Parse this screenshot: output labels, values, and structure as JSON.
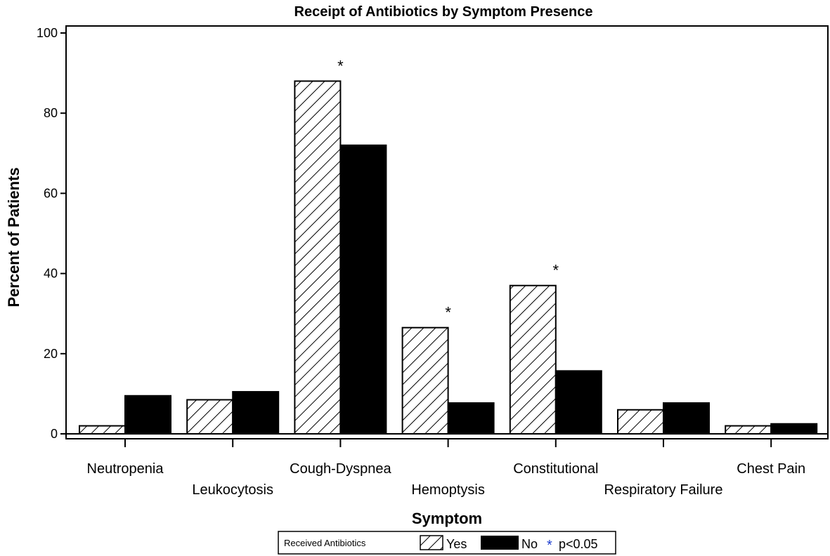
{
  "chart_data": {
    "type": "bar",
    "title": "Receipt of Antibiotics by Symptom Presence",
    "xlabel": "Symptom",
    "ylabel": "Percent of Patients",
    "ylim": [
      0,
      100
    ],
    "yticks": [
      "0",
      "20",
      "40",
      "60",
      "80",
      "100"
    ],
    "ytick_values": [
      0,
      20,
      40,
      60,
      80,
      100
    ],
    "categories": [
      "Neutropenia",
      "Leukocytosis",
      "Cough-Dyspnea",
      "Hemoptysis",
      "Constitutional",
      "Respiratory Failure",
      "Chest Pain"
    ],
    "series": [
      {
        "name": "Yes",
        "pattern": "diagonal-hatch",
        "values": [
          2,
          8.5,
          88,
          26.5,
          37,
          6,
          2
        ]
      },
      {
        "name": "No",
        "color": "#000000",
        "values": [
          9.5,
          10.5,
          72,
          7.7,
          15.7,
          7.7,
          2.5
        ]
      }
    ],
    "significance_marker": "*",
    "significant_categories": [
      "Cough-Dyspnea",
      "Hemoptysis",
      "Constitutional"
    ],
    "legend": {
      "title": "Received Antibiotics",
      "placement": "bottom-center",
      "note_marker": "*",
      "note_text": "p<0.05"
    },
    "grid": false
  }
}
